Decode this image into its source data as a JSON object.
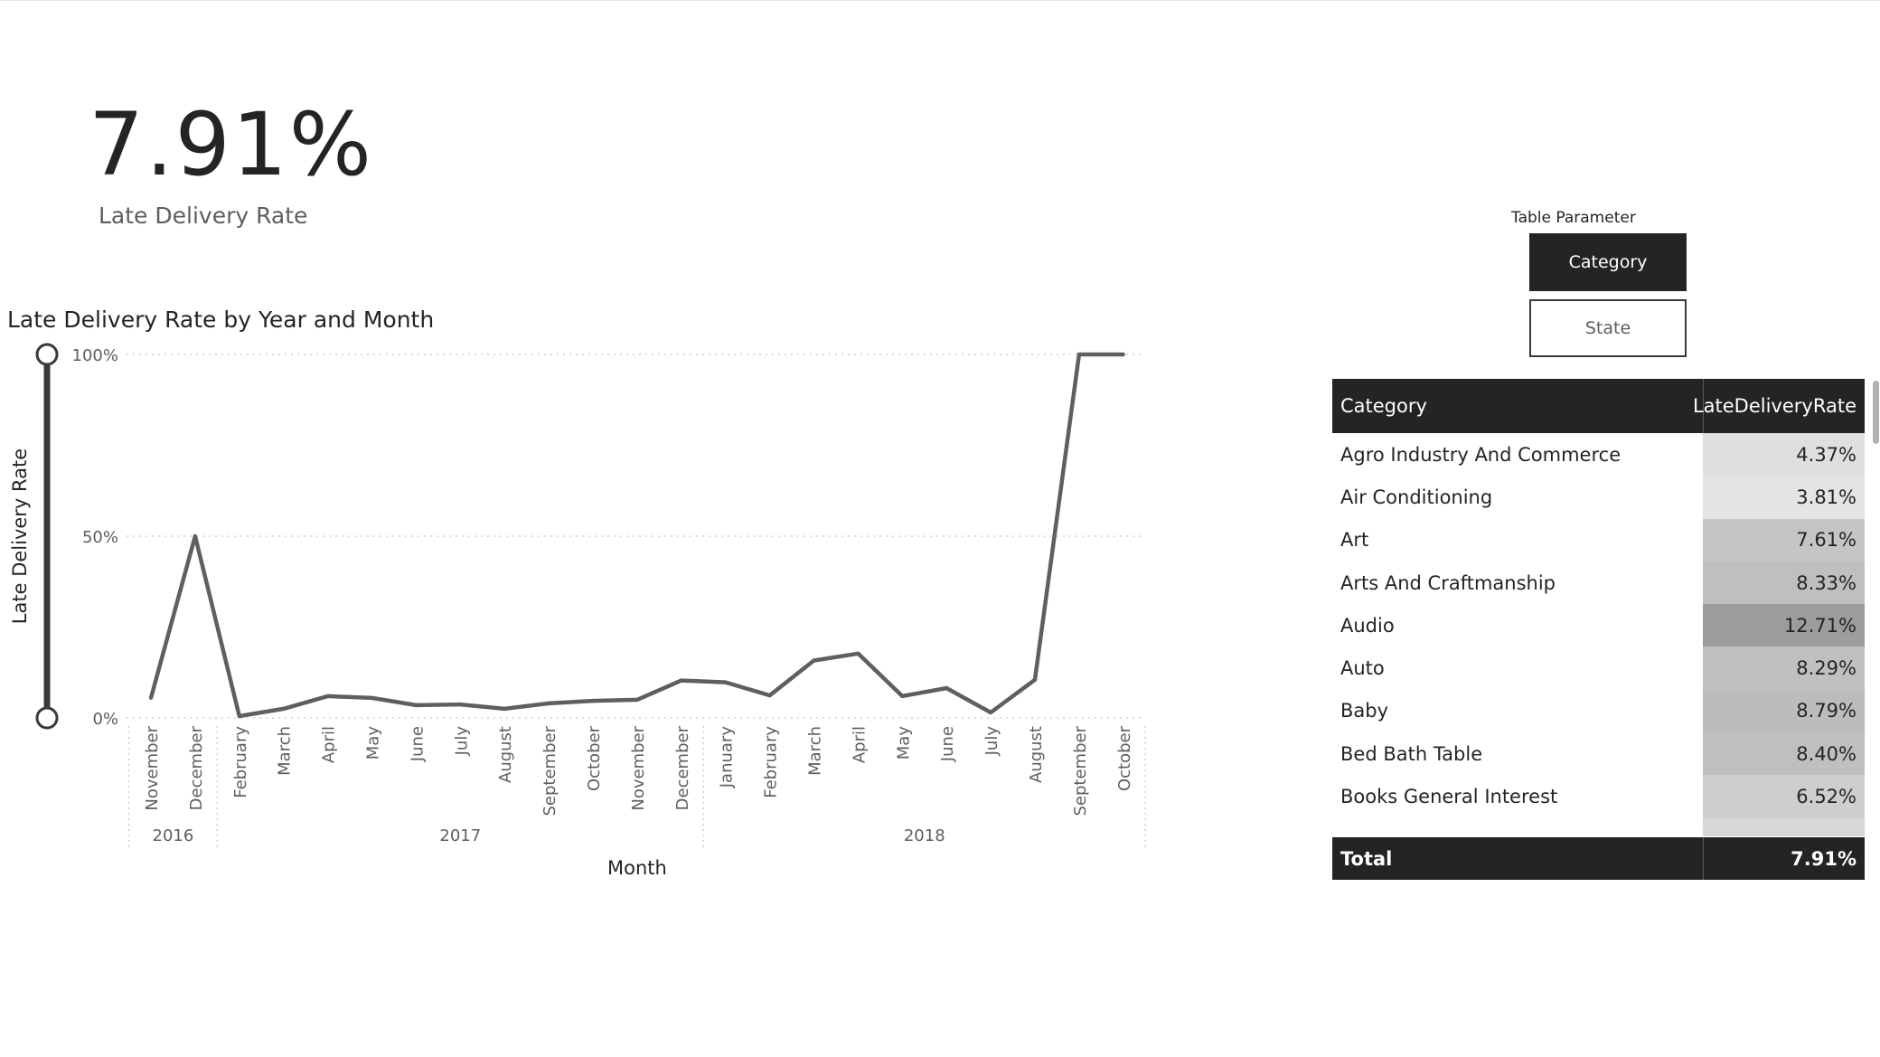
{
  "kpi": {
    "value": "7.91%",
    "label": "Late Delivery Rate"
  },
  "slicer": {
    "title": "Table Parameter",
    "options": [
      {
        "label": "Category",
        "selected": true
      },
      {
        "label": "State",
        "selected": false
      }
    ]
  },
  "table": {
    "headers": [
      "Category",
      "LateDeliveryRate"
    ],
    "rows": [
      {
        "name": "Agro Industry And Commerce",
        "rate": "4.37%",
        "value": 4.37
      },
      {
        "name": "Air Conditioning",
        "rate": "3.81%",
        "value": 3.81
      },
      {
        "name": "Art",
        "rate": "7.61%",
        "value": 7.61
      },
      {
        "name": "Arts And Craftmanship",
        "rate": "8.33%",
        "value": 8.33
      },
      {
        "name": "Audio",
        "rate": "12.71%",
        "value": 12.71
      },
      {
        "name": "Auto",
        "rate": "8.29%",
        "value": 8.29
      },
      {
        "name": "Baby",
        "rate": "8.79%",
        "value": 8.79
      },
      {
        "name": "Bed Bath Table",
        "rate": "8.40%",
        "value": 8.4
      },
      {
        "name": "Books General Interest",
        "rate": "6.52%",
        "value": 6.52
      }
    ],
    "total": {
      "label": "Total",
      "rate": "7.91%"
    }
  },
  "colors": {
    "dark": "#252423",
    "line": "#5f5f5f",
    "heat_low": "#e4e4e4",
    "heat_high": "#9c9c9c"
  },
  "chart_data": {
    "type": "line",
    "title": "Late Delivery Rate by Year and Month",
    "xlabel": "Month",
    "ylabel": "Late Delivery Rate",
    "yticks": [
      "100%",
      "50%",
      "0%"
    ],
    "ylim": [
      0,
      100
    ],
    "grid": true,
    "years": [
      {
        "label": "2016",
        "months": 2
      },
      {
        "label": "2017",
        "months": 11
      },
      {
        "label": "2018",
        "months": 10
      }
    ],
    "x": [
      "November",
      "December",
      "February",
      "March",
      "April",
      "May",
      "June",
      "July",
      "August",
      "September",
      "October",
      "November",
      "December",
      "January",
      "February",
      "March",
      "April",
      "May",
      "June",
      "July",
      "August",
      "September",
      "October"
    ],
    "series": [
      {
        "values": [
          5.5,
          50,
          0.5,
          2.5,
          6,
          5.5,
          3.5,
          3.7,
          2.5,
          4,
          4.7,
          5,
          10.3,
          9.8,
          6.2,
          15.8,
          17.7,
          6,
          8.2,
          1.5,
          10.5,
          100,
          100
        ]
      }
    ]
  }
}
